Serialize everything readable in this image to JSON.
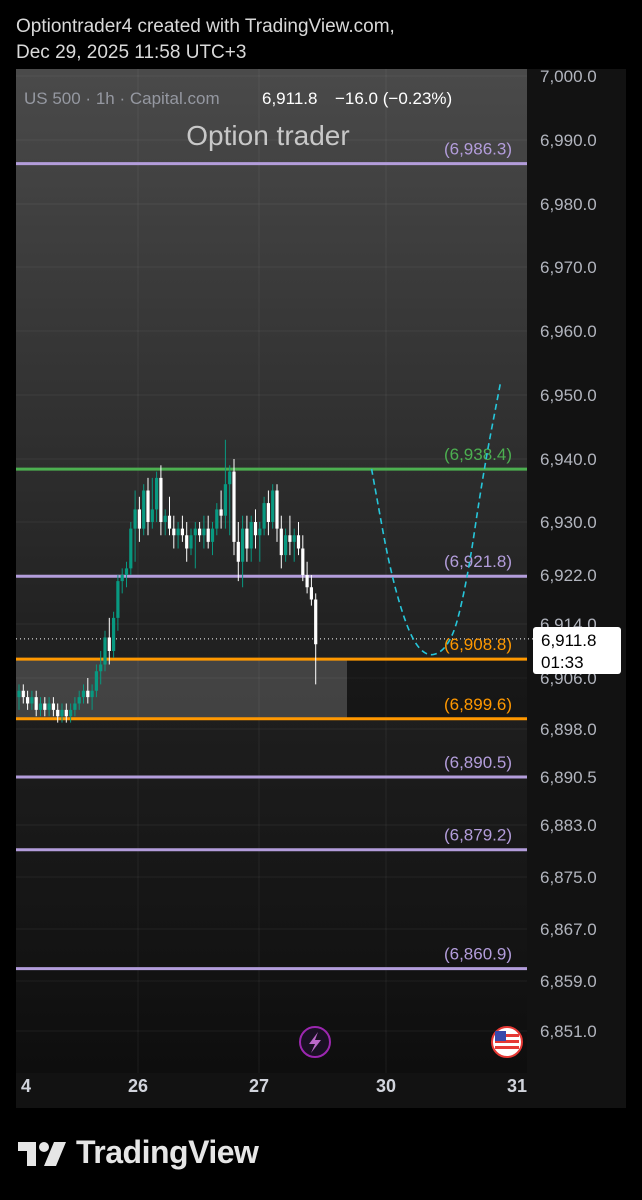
{
  "header": {
    "line1": "Optiontrader4 created with TradingView.com,",
    "line2": "Dec 29, 2025 11:58 UTC+3"
  },
  "chart_data": {
    "type": "candlestick",
    "symbol": "US 500",
    "interval": "1h",
    "source": "Capital.com",
    "price": "6,911.8",
    "change": "−16.0 (−0.23%)",
    "title": "Option trader",
    "price_ticks": [
      "7,000.0",
      "6,990.0",
      "6,980.0",
      "6,970.0",
      "6,960.0",
      "6,950.0",
      "6,940.0",
      "6,930.0",
      "6,922.0",
      "6,914.0",
      "6,906.0",
      "6,898.0",
      "6,890.5",
      "6,883.0",
      "6,875.0",
      "6,867.0",
      "6,859.0",
      "6,851.0"
    ],
    "date_ticks": [
      "4",
      "26",
      "27",
      "30",
      "31"
    ],
    "current_price_label": {
      "price": "6,911.8",
      "countdown": "01:33"
    },
    "levels": [
      {
        "value": 6986.3,
        "label": "(6,986.3)",
        "color": "#b39ddb"
      },
      {
        "value": 6938.4,
        "label": "(6,938.4)",
        "color": "#4caf50"
      },
      {
        "value": 6921.8,
        "label": "(6,921.8)",
        "color": "#b39ddb"
      },
      {
        "value": 6908.8,
        "label": "(6,908.8)",
        "color": "#ff9800"
      },
      {
        "value": 6899.6,
        "label": "(6,899.6)",
        "color": "#ff9800"
      },
      {
        "value": 6890.5,
        "label": "(6,890.5)",
        "color": "#b39ddb"
      },
      {
        "value": 6879.2,
        "label": "(6,879.2)",
        "color": "#b39ddb"
      },
      {
        "value": 6860.9,
        "label": "(6,860.9)",
        "color": "#b39ddb"
      }
    ],
    "zone": {
      "from": 6899.6,
      "to": 6908.8
    },
    "projection": {
      "style": "dashed",
      "color": "#26c6da",
      "path": [
        [
          82,
          6938.4
        ],
        [
          87,
          6920
        ],
        [
          93,
          6909
        ],
        [
          100,
          6910
        ],
        [
          104,
          6920
        ],
        [
          108,
          6938
        ],
        [
          112,
          6952
        ]
      ]
    },
    "candles": [
      [
        0,
        6903,
        6905,
        6901,
        6904
      ],
      [
        1,
        6904,
        6905,
        6902,
        6903
      ],
      [
        2,
        6903,
        6904,
        6901,
        6902
      ],
      [
        3,
        6902,
        6904,
        6901,
        6903
      ],
      [
        4,
        6903,
        6904,
        6900,
        6901
      ],
      [
        5,
        6901,
        6903,
        6900,
        6902
      ],
      [
        6,
        6902,
        6903,
        6900,
        6901
      ],
      [
        7,
        6901,
        6903,
        6900,
        6902
      ],
      [
        8,
        6902,
        6903,
        6900,
        6901
      ],
      [
        9,
        6901,
        6902,
        6899,
        6900
      ],
      [
        10,
        6900,
        6902,
        6899,
        6901
      ],
      [
        11,
        6901,
        6902,
        6899,
        6900
      ],
      [
        12,
        6900,
        6902,
        6899,
        6901
      ],
      [
        13,
        6901,
        6903,
        6900,
        6902
      ],
      [
        14,
        6902,
        6904,
        6901,
        6903
      ],
      [
        15,
        6903,
        6905,
        6902,
        6904
      ],
      [
        16,
        6904,
        6906,
        6902,
        6903
      ],
      [
        17,
        6903,
        6905,
        6901,
        6904
      ],
      [
        18,
        6904,
        6908,
        6903,
        6907
      ],
      [
        19,
        6907,
        6910,
        6905,
        6908
      ],
      [
        20,
        6908,
        6913,
        6907,
        6912
      ],
      [
        21,
        6912,
        6915,
        6908,
        6910
      ],
      [
        22,
        6910,
        6916,
        6909,
        6915
      ],
      [
        23,
        6915,
        6922,
        6913,
        6921
      ],
      [
        24,
        6921,
        6923,
        6919,
        6922
      ],
      [
        25,
        6922,
        6924,
        6920,
        6923
      ],
      [
        26,
        6923,
        6930,
        6922,
        6929
      ],
      [
        27,
        6929,
        6935,
        6924,
        6932
      ],
      [
        28,
        6932,
        6934,
        6927,
        6929
      ],
      [
        29,
        6929,
        6936,
        6928,
        6935
      ],
      [
        30,
        6935,
        6937,
        6928,
        6930
      ],
      [
        31,
        6930,
        6937,
        6929,
        6932
      ],
      [
        32,
        6932,
        6938,
        6930,
        6937
      ],
      [
        33,
        6937,
        6939,
        6928,
        6930
      ],
      [
        34,
        6930,
        6932,
        6928,
        6931
      ],
      [
        35,
        6931,
        6934,
        6928,
        6929
      ],
      [
        36,
        6929,
        6931,
        6926,
        6928
      ],
      [
        37,
        6928,
        6930,
        6926,
        6929
      ],
      [
        38,
        6929,
        6931,
        6927,
        6928
      ],
      [
        39,
        6928,
        6930,
        6924,
        6926
      ],
      [
        40,
        6926,
        6929,
        6925,
        6928
      ],
      [
        41,
        6928,
        6930,
        6923,
        6929
      ],
      [
        42,
        6929,
        6930,
        6927,
        6928
      ],
      [
        43,
        6928,
        6931,
        6926,
        6929
      ],
      [
        44,
        6929,
        6931,
        6926,
        6927
      ],
      [
        45,
        6927,
        6930,
        6925,
        6929
      ],
      [
        46,
        6929,
        6933,
        6928,
        6932
      ],
      [
        47,
        6932,
        6935,
        6929,
        6931
      ],
      [
        48,
        6931,
        6943,
        6929,
        6936
      ],
      [
        49,
        6936,
        6939,
        6928,
        6938
      ],
      [
        50,
        6938,
        6940,
        6925,
        6927
      ],
      [
        51,
        6927,
        6930,
        6921,
        6924
      ],
      [
        52,
        6924,
        6931,
        6920,
        6929
      ],
      [
        53,
        6929,
        6931,
        6924,
        6926
      ],
      [
        54,
        6926,
        6931,
        6924,
        6930
      ],
      [
        55,
        6930,
        6932,
        6926,
        6928
      ],
      [
        56,
        6928,
        6930,
        6924,
        6929
      ],
      [
        57,
        6929,
        6934,
        6928,
        6933
      ],
      [
        58,
        6933,
        6935,
        6928,
        6930
      ],
      [
        59,
        6930,
        6936,
        6929,
        6935
      ],
      [
        60,
        6935,
        6936,
        6927,
        6929
      ],
      [
        61,
        6929,
        6931,
        6923,
        6925
      ],
      [
        62,
        6925,
        6929,
        6924,
        6928
      ],
      [
        63,
        6928,
        6931,
        6925,
        6927
      ],
      [
        64,
        6927,
        6929,
        6924,
        6928
      ],
      [
        65,
        6928,
        6930,
        6925,
        6926
      ],
      [
        66,
        6926,
        6928,
        6921,
        6922
      ],
      [
        67,
        6922,
        6924,
        6919,
        6920
      ],
      [
        68,
        6920,
        6922,
        6917,
        6918
      ],
      [
        69,
        6918,
        6919,
        6905,
        6911
      ]
    ],
    "icons": [
      "lightning-icon",
      "us-flag-icon"
    ]
  },
  "brand": {
    "name": "TradingView"
  }
}
